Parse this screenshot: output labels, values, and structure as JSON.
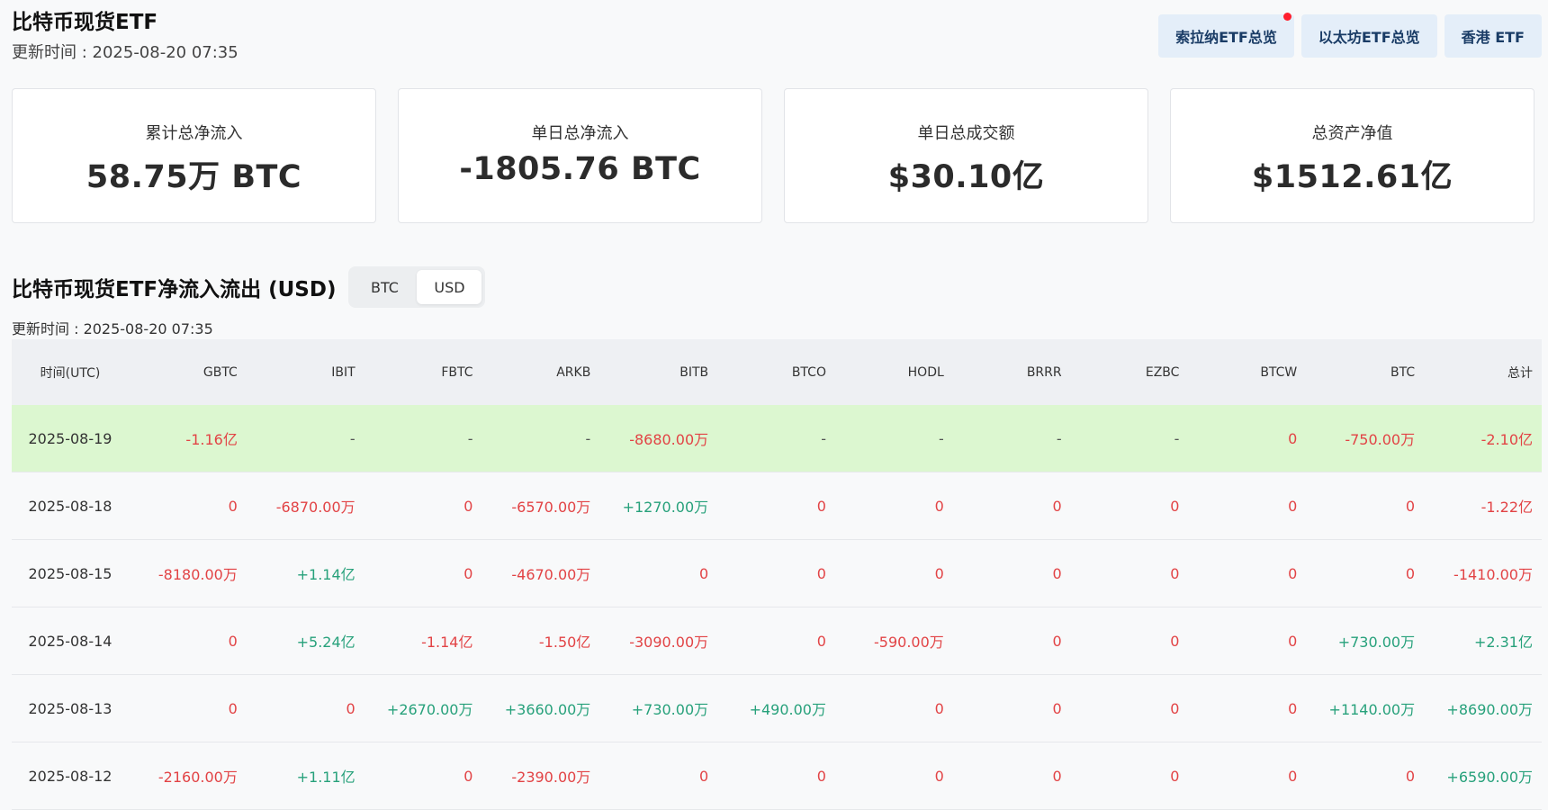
{
  "header": {
    "title": "比特币现货ETF",
    "update_time": "更新时间 : 2025-08-20 07:35"
  },
  "nav_buttons": [
    {
      "label": "索拉纳ETF总览",
      "has_dot": true
    },
    {
      "label": "以太坊ETF总览",
      "has_dot": false
    },
    {
      "label": "香港 ETF",
      "has_dot": false
    }
  ],
  "stats": [
    {
      "label": "累计总净流入",
      "value": "58.75万 BTC"
    },
    {
      "label": "单日总净流入",
      "value": "-1805.76 BTC"
    },
    {
      "label": "单日总成交额",
      "value": "$30.10亿"
    },
    {
      "label": "总资产净值",
      "value": "$1512.61亿"
    }
  ],
  "section": {
    "title": "比特币现货ETF净流入流出 (USD)",
    "update_time": "更新时间 : 2025-08-20 07:35",
    "toggle": [
      "BTC",
      "USD"
    ],
    "active_toggle": "USD"
  },
  "table": {
    "headers": [
      "时间(UTC)",
      "GBTC",
      "IBIT",
      "FBTC",
      "ARKB",
      "BITB",
      "BTCO",
      "HODL",
      "BRRR",
      "EZBC",
      "BTCW",
      "BTC",
      "总计"
    ],
    "rows": [
      [
        "2025-08-19",
        "-1.16亿",
        "-",
        "-",
        "-",
        "-8680.00万",
        "-",
        "-",
        "-",
        "-",
        "0",
        "-750.00万",
        "-2.10亿"
      ],
      [
        "2025-08-18",
        "0",
        "-6870.00万",
        "0",
        "-6570.00万",
        "+1270.00万",
        "0",
        "0",
        "0",
        "0",
        "0",
        "0",
        "-1.22亿"
      ],
      [
        "2025-08-15",
        "-8180.00万",
        "+1.14亿",
        "0",
        "-4670.00万",
        "0",
        "0",
        "0",
        "0",
        "0",
        "0",
        "0",
        "-1410.00万"
      ],
      [
        "2025-08-14",
        "0",
        "+5.24亿",
        "-1.14亿",
        "-1.50亿",
        "-3090.00万",
        "0",
        "-590.00万",
        "0",
        "0",
        "0",
        "+730.00万",
        "+2.31亿"
      ],
      [
        "2025-08-13",
        "0",
        "0",
        "+2670.00万",
        "+3660.00万",
        "+730.00万",
        "+490.00万",
        "0",
        "0",
        "0",
        "0",
        "+1140.00万",
        "+8690.00万"
      ],
      [
        "2025-08-12",
        "-2160.00万",
        "+1.11亿",
        "0",
        "-2390.00万",
        "0",
        "0",
        "0",
        "0",
        "0",
        "0",
        "0",
        "+6590.00万"
      ]
    ],
    "highlight_row": 0
  },
  "colors": {
    "negative": "#e24345",
    "positive": "#27a17b",
    "highlight": "#dcf7d0"
  }
}
